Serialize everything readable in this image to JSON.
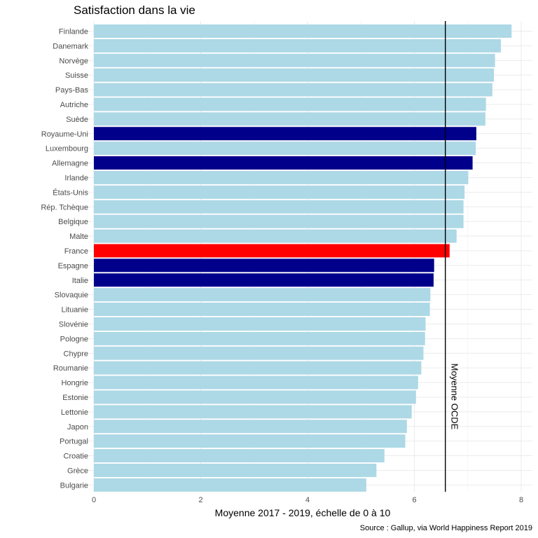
{
  "chart_data": {
    "type": "bar",
    "orientation": "horizontal",
    "title": "Satisfaction dans la vie",
    "xlabel": "Moyenne 2017 - 2019, échelle de 0 à 10",
    "ylabel": "",
    "caption": "Source : Gallup, via World Happiness Report 2019",
    "xlim": [
      0,
      8
    ],
    "xticks": [
      0,
      2,
      4,
      6,
      8
    ],
    "grid": true,
    "legend": "none",
    "reference_line": {
      "value": 6.58,
      "label": "Moyenne OCDE",
      "color": "#000000"
    },
    "colors": {
      "default": "#add8e6",
      "highlight": "#00008b",
      "france": "#ff0000"
    },
    "bars": [
      {
        "category": "Finlande",
        "value": 7.82,
        "color": "default"
      },
      {
        "category": "Danemark",
        "value": 7.62,
        "color": "default"
      },
      {
        "category": "Norvège",
        "value": 7.51,
        "color": "default"
      },
      {
        "category": "Suisse",
        "value": 7.49,
        "color": "default"
      },
      {
        "category": "Pays-Bas",
        "value": 7.46,
        "color": "default"
      },
      {
        "category": "Autriche",
        "value": 7.34,
        "color": "default"
      },
      {
        "category": "Suède",
        "value": 7.33,
        "color": "default"
      },
      {
        "category": "Royaume-Uni",
        "value": 7.16,
        "color": "highlight"
      },
      {
        "category": "Luxembourg",
        "value": 7.15,
        "color": "default"
      },
      {
        "category": "Allemagne",
        "value": 7.09,
        "color": "highlight"
      },
      {
        "category": "Irlande",
        "value": 7.01,
        "color": "default"
      },
      {
        "category": "États-Unis",
        "value": 6.94,
        "color": "default"
      },
      {
        "category": "Rép. Tchèque",
        "value": 6.92,
        "color": "default"
      },
      {
        "category": "Belgique",
        "value": 6.92,
        "color": "default"
      },
      {
        "category": "Malte",
        "value": 6.79,
        "color": "default"
      },
      {
        "category": "France",
        "value": 6.66,
        "color": "france"
      },
      {
        "category": "Espagne",
        "value": 6.37,
        "color": "highlight"
      },
      {
        "category": "Italie",
        "value": 6.36,
        "color": "highlight"
      },
      {
        "category": "Slovaquie",
        "value": 6.3,
        "color": "default"
      },
      {
        "category": "Lituanie",
        "value": 6.29,
        "color": "default"
      },
      {
        "category": "Slovénie",
        "value": 6.21,
        "color": "default"
      },
      {
        "category": "Pologne",
        "value": 6.2,
        "color": "default"
      },
      {
        "category": "Chypre",
        "value": 6.17,
        "color": "default"
      },
      {
        "category": "Roumanie",
        "value": 6.13,
        "color": "default"
      },
      {
        "category": "Hongrie",
        "value": 6.07,
        "color": "default"
      },
      {
        "category": "Estonie",
        "value": 6.03,
        "color": "default"
      },
      {
        "category": "Lettonie",
        "value": 5.95,
        "color": "default"
      },
      {
        "category": "Japon",
        "value": 5.86,
        "color": "default"
      },
      {
        "category": "Portugal",
        "value": 5.83,
        "color": "default"
      },
      {
        "category": "Croatie",
        "value": 5.44,
        "color": "default"
      },
      {
        "category": "Grèce",
        "value": 5.29,
        "color": "default"
      },
      {
        "category": "Bulgarie",
        "value": 5.1,
        "color": "default"
      }
    ]
  }
}
